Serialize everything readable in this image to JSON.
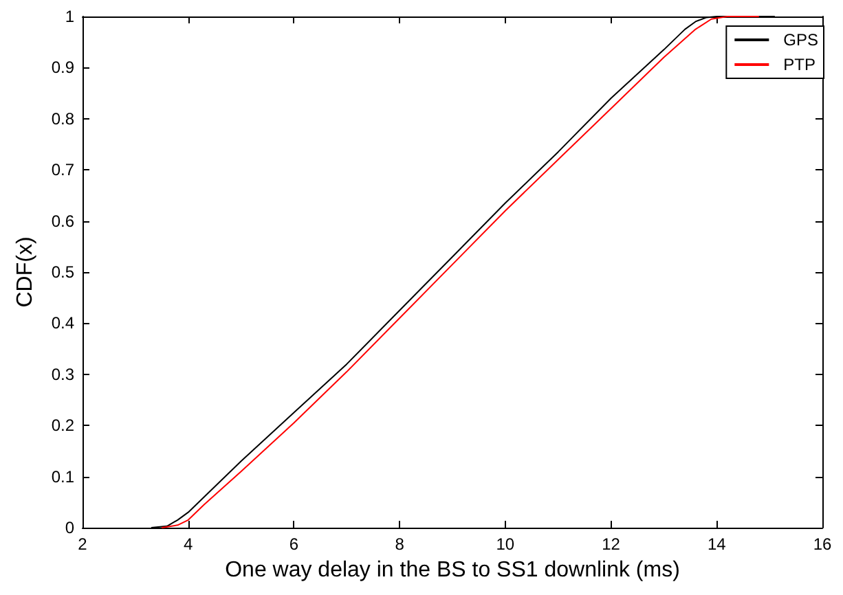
{
  "chart_data": {
    "type": "line",
    "xlabel": "One way delay in the BS to SS1 downlink (ms)",
    "ylabel": "CDF(x)",
    "xlim": [
      2,
      16
    ],
    "xticks": [
      2,
      4,
      6,
      8,
      10,
      12,
      14,
      16
    ],
    "ylim": [
      0,
      1
    ],
    "yticks": [
      0,
      0.1,
      0.2,
      0.3,
      0.4,
      0.5,
      0.6,
      0.7,
      0.8,
      0.9,
      1
    ],
    "grid": false,
    "legend": "top right",
    "marker": "none",
    "line_style": "solid",
    "series": [
      {
        "name": "GPS",
        "color": "#000000",
        "x": [
          3.3,
          3.6,
          3.8,
          4,
          4.5,
          5,
          6,
          7,
          8,
          9,
          10,
          11,
          12,
          13,
          13.4,
          13.6,
          13.8,
          14,
          15.1
        ],
        "values": [
          0,
          0.003,
          0.015,
          0.03,
          0.08,
          0.13,
          0.225,
          0.32,
          0.425,
          0.53,
          0.635,
          0.735,
          0.84,
          0.935,
          0.975,
          0.99,
          0.998,
          1,
          1
        ]
      },
      {
        "name": "PTP",
        "color": "#ff0000",
        "x": [
          3.5,
          3.8,
          4,
          4.3,
          5,
          6,
          7,
          8,
          9,
          10,
          11,
          12,
          13,
          13.6,
          13.9,
          14.2,
          14.8
        ],
        "values": [
          0,
          0.005,
          0.015,
          0.045,
          0.11,
          0.205,
          0.305,
          0.41,
          0.515,
          0.62,
          0.72,
          0.82,
          0.92,
          0.975,
          0.995,
          1,
          1
        ]
      }
    ]
  }
}
